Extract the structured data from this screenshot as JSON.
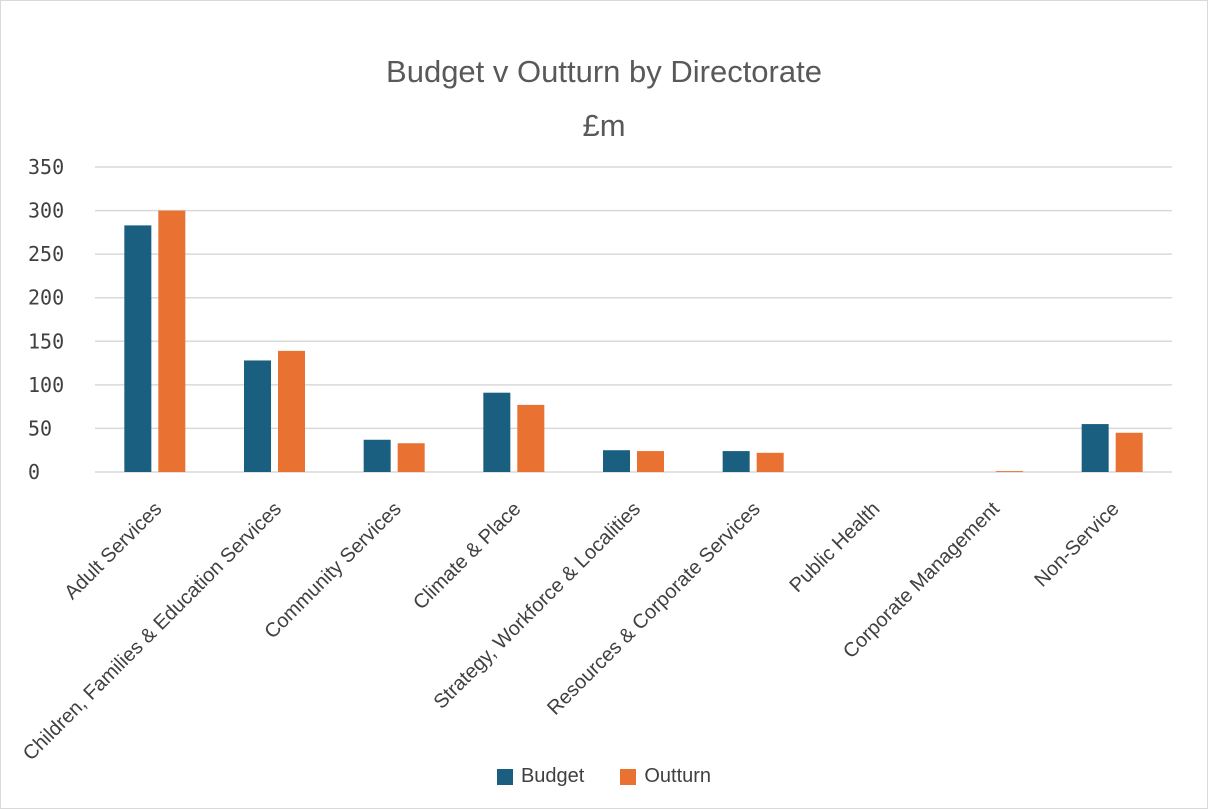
{
  "chart_data": {
    "type": "bar",
    "title": "Budget v Outturn by Directorate",
    "subtitle": "£m",
    "categories": [
      "Adult Services",
      "Children, Families & Education Services",
      "Community Services",
      "Climate & Place",
      "Strategy, Workforce & Localities",
      "Resources & Corporate Services",
      "Public Health",
      "Corporate Management",
      "Non-Service"
    ],
    "series": [
      {
        "name": "Budget",
        "color": "#1a5f7f",
        "values": [
          283,
          128,
          37,
          91,
          25,
          24,
          0,
          0,
          55
        ]
      },
      {
        "name": "Outturn",
        "color": "#e97132",
        "values": [
          300,
          139,
          33,
          77,
          24,
          22,
          0,
          1,
          45
        ]
      }
    ],
    "yticks": [
      "0",
      "50",
      "100",
      "150",
      "200",
      "250",
      "300",
      "350"
    ],
    "ylim": [
      0,
      350
    ],
    "grid": true,
    "legend": "bottom"
  }
}
